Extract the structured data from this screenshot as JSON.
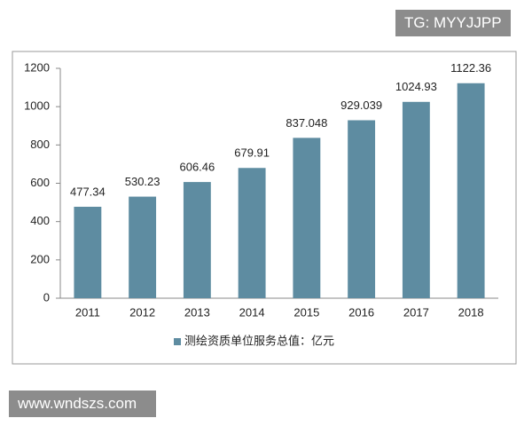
{
  "watermark_top": "TG: MYYJJPP",
  "watermark_bottom": "www.wndszs.com",
  "chart_data": {
    "type": "bar",
    "categories": [
      "2011",
      "2012",
      "2013",
      "2014",
      "2015",
      "2016",
      "2017",
      "2018"
    ],
    "series": [
      {
        "name": "测绘资质单位服务总值：亿元",
        "color": "#5e8ca1",
        "values": [
          477.34,
          530.23,
          606.46,
          679.91,
          837.048,
          929.039,
          1024.93,
          1122.36
        ]
      }
    ],
    "ylim": [
      0,
      1200
    ],
    "yticks": [
      0,
      200,
      400,
      600,
      800,
      1000,
      1200
    ],
    "grid": false,
    "legend": "bottom"
  }
}
